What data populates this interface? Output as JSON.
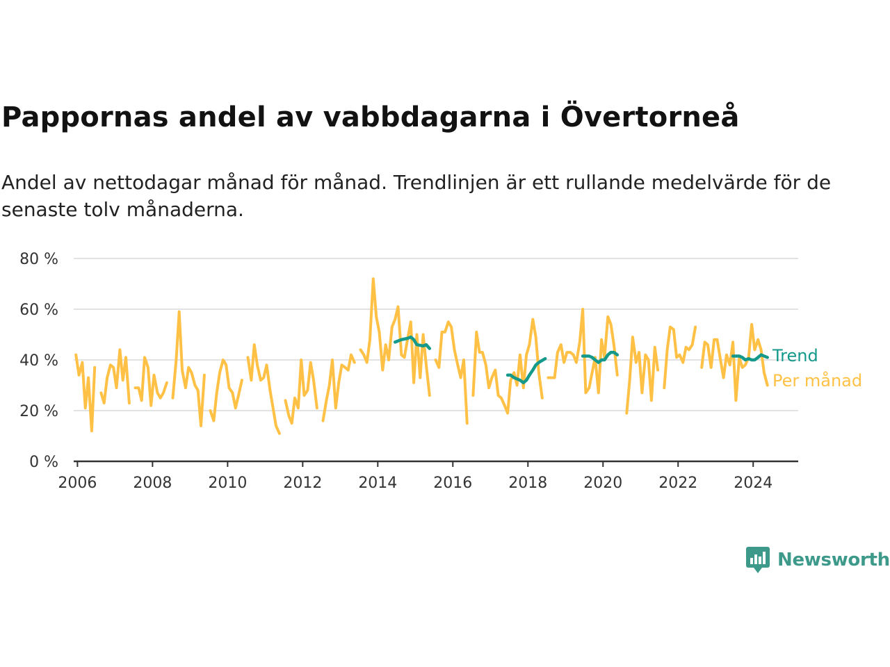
{
  "title": "Pappornas andel av vabbdagarna i Övertorneå",
  "subtitle": "Andel av nettodagar månad för månad. Trendlinjen är ett rullande medelvärde för de senaste tolv månaderna.",
  "brand": {
    "name": "Newsworthy",
    "color": "#3d9a8b",
    "icon": "newsworthy-logo-icon"
  },
  "chart_data": {
    "type": "line",
    "ylim": [
      0,
      80
    ],
    "xlim": [
      2005.9,
      2025.2
    ],
    "yticks": [
      0,
      20,
      40,
      60,
      80
    ],
    "ytick_labels": [
      "0 %",
      "20 %",
      "40 %",
      "60 %",
      "80 %"
    ],
    "xticks": [
      2006,
      2008,
      2010,
      2012,
      2014,
      2016,
      2018,
      2020,
      2022,
      2024
    ],
    "xtick_labels": [
      "2006",
      "2008",
      "2010",
      "2012",
      "2014",
      "2016",
      "2018",
      "2020",
      "2022",
      "2024"
    ],
    "grid": true,
    "series": [
      {
        "name": "Per månad",
        "color": "#ffc145",
        "points": [
          [
            2005.96,
            42
          ],
          [
            2006.04,
            34
          ],
          [
            2006.13,
            39
          ],
          [
            2006.21,
            21
          ],
          [
            2006.29,
            33
          ],
          [
            2006.38,
            12
          ],
          [
            2006.46,
            37
          ],
          null,
          [
            2006.63,
            27
          ],
          [
            2006.71,
            23
          ],
          [
            2006.79,
            33
          ],
          [
            2006.88,
            38
          ],
          [
            2006.96,
            37
          ],
          [
            2007.04,
            29
          ],
          [
            2007.13,
            44
          ],
          [
            2007.21,
            32
          ],
          [
            2007.29,
            41
          ],
          [
            2007.38,
            23
          ],
          null,
          [
            2007.54,
            29
          ],
          [
            2007.63,
            29
          ],
          [
            2007.71,
            24
          ],
          [
            2007.79,
            41
          ],
          [
            2007.88,
            37
          ],
          [
            2007.96,
            22
          ],
          [
            2008.04,
            34
          ],
          [
            2008.13,
            27
          ],
          [
            2008.21,
            25
          ],
          [
            2008.29,
            27
          ],
          [
            2008.38,
            31
          ],
          null,
          [
            2008.54,
            25
          ],
          [
            2008.63,
            40
          ],
          [
            2008.71,
            59
          ],
          [
            2008.79,
            36
          ],
          [
            2008.88,
            29
          ],
          [
            2008.96,
            37
          ],
          [
            2009.04,
            35
          ],
          [
            2009.13,
            30
          ],
          [
            2009.21,
            28
          ],
          [
            2009.29,
            14
          ],
          [
            2009.38,
            34
          ],
          null,
          [
            2009.54,
            20
          ],
          [
            2009.63,
            16
          ],
          [
            2009.71,
            27
          ],
          [
            2009.79,
            35
          ],
          [
            2009.88,
            40
          ],
          [
            2009.96,
            38
          ],
          [
            2010.04,
            29
          ],
          [
            2010.13,
            27
          ],
          [
            2010.21,
            21
          ],
          [
            2010.29,
            26
          ],
          [
            2010.38,
            32
          ],
          null,
          [
            2010.54,
            41
          ],
          [
            2010.63,
            32
          ],
          [
            2010.71,
            46
          ],
          [
            2010.79,
            38
          ],
          [
            2010.88,
            32
          ],
          [
            2010.96,
            33
          ],
          [
            2011.04,
            38
          ],
          [
            2011.13,
            28
          ],
          [
            2011.21,
            21
          ],
          [
            2011.29,
            14
          ],
          [
            2011.38,
            11
          ],
          null,
          [
            2011.54,
            24
          ],
          [
            2011.63,
            18
          ],
          [
            2011.71,
            15
          ],
          [
            2011.79,
            25
          ],
          [
            2011.88,
            21
          ],
          [
            2011.96,
            40
          ],
          [
            2012.04,
            26
          ],
          [
            2012.13,
            28
          ],
          [
            2012.21,
            39
          ],
          [
            2012.29,
            32
          ],
          [
            2012.38,
            21
          ],
          null,
          [
            2012.54,
            16
          ],
          [
            2012.63,
            24
          ],
          [
            2012.71,
            30
          ],
          [
            2012.79,
            40
          ],
          [
            2012.88,
            21
          ],
          [
            2012.96,
            31
          ],
          [
            2013.04,
            38
          ],
          [
            2013.13,
            37
          ],
          [
            2013.21,
            36
          ],
          [
            2013.29,
            42
          ],
          [
            2013.38,
            39
          ],
          null,
          [
            2013.54,
            44
          ],
          [
            2013.63,
            42
          ],
          [
            2013.71,
            39
          ],
          [
            2013.79,
            48
          ],
          [
            2013.88,
            72
          ],
          [
            2013.96,
            57
          ],
          [
            2014.04,
            51
          ],
          [
            2014.13,
            36
          ],
          [
            2014.21,
            46
          ],
          [
            2014.29,
            40
          ],
          [
            2014.38,
            53
          ],
          [
            2014.46,
            56
          ],
          [
            2014.54,
            61
          ],
          [
            2014.63,
            42
          ],
          [
            2014.71,
            41
          ],
          [
            2014.79,
            48
          ],
          [
            2014.88,
            55
          ],
          [
            2014.96,
            31
          ],
          [
            2015.04,
            50
          ],
          [
            2015.13,
            33
          ],
          [
            2015.21,
            50
          ],
          [
            2015.29,
            38
          ],
          [
            2015.38,
            26
          ],
          null,
          [
            2015.54,
            40
          ],
          [
            2015.63,
            37
          ],
          [
            2015.71,
            51
          ],
          [
            2015.79,
            51
          ],
          [
            2015.88,
            55
          ],
          [
            2015.96,
            53
          ],
          [
            2016.04,
            44
          ],
          [
            2016.13,
            38
          ],
          [
            2016.21,
            33
          ],
          [
            2016.29,
            40
          ],
          [
            2016.38,
            15
          ],
          null,
          [
            2016.54,
            26
          ],
          [
            2016.63,
            51
          ],
          [
            2016.71,
            43
          ],
          [
            2016.79,
            43
          ],
          [
            2016.88,
            38
          ],
          [
            2016.96,
            29
          ],
          [
            2017.04,
            33
          ],
          [
            2017.13,
            36
          ],
          [
            2017.21,
            26
          ],
          [
            2017.29,
            25
          ],
          [
            2017.38,
            22
          ],
          [
            2017.46,
            19
          ],
          [
            2017.54,
            32
          ],
          [
            2017.63,
            35
          ],
          [
            2017.71,
            30
          ],
          [
            2017.79,
            42
          ],
          [
            2017.88,
            29
          ],
          [
            2017.96,
            42
          ],
          [
            2018.04,
            46
          ],
          [
            2018.13,
            56
          ],
          [
            2018.21,
            49
          ],
          [
            2018.29,
            35
          ],
          [
            2018.38,
            25
          ],
          null,
          [
            2018.54,
            33
          ],
          [
            2018.63,
            33
          ],
          [
            2018.71,
            33
          ],
          [
            2018.79,
            43
          ],
          [
            2018.88,
            46
          ],
          [
            2018.96,
            39
          ],
          [
            2019.04,
            43
          ],
          [
            2019.13,
            43
          ],
          [
            2019.21,
            42
          ],
          [
            2019.29,
            39
          ],
          [
            2019.38,
            47
          ],
          [
            2019.46,
            60
          ],
          [
            2019.54,
            27
          ],
          [
            2019.63,
            29
          ],
          [
            2019.71,
            35
          ],
          [
            2019.79,
            41
          ],
          [
            2019.88,
            27
          ],
          [
            2019.96,
            48
          ],
          [
            2020.04,
            41
          ],
          [
            2020.13,
            57
          ],
          [
            2020.21,
            54
          ],
          [
            2020.29,
            46
          ],
          [
            2020.38,
            34
          ],
          null,
          [
            2020.63,
            19
          ],
          [
            2020.71,
            32
          ],
          [
            2020.79,
            49
          ],
          [
            2020.88,
            39
          ],
          [
            2020.96,
            43
          ],
          [
            2021.04,
            27
          ],
          [
            2021.13,
            42
          ],
          [
            2021.21,
            40
          ],
          [
            2021.29,
            24
          ],
          [
            2021.38,
            45
          ],
          [
            2021.46,
            36
          ],
          null,
          [
            2021.63,
            29
          ],
          [
            2021.71,
            44
          ],
          [
            2021.79,
            53
          ],
          [
            2021.88,
            52
          ],
          [
            2021.96,
            41
          ],
          [
            2022.04,
            42
          ],
          [
            2022.13,
            39
          ],
          [
            2022.21,
            45
          ],
          [
            2022.29,
            44
          ],
          [
            2022.38,
            46
          ],
          [
            2022.46,
            53
          ],
          null,
          [
            2022.63,
            37
          ],
          [
            2022.71,
            47
          ],
          [
            2022.79,
            46
          ],
          [
            2022.88,
            37
          ],
          [
            2022.96,
            48
          ],
          [
            2023.04,
            48
          ],
          [
            2023.13,
            40
          ],
          [
            2023.21,
            33
          ],
          [
            2023.29,
            42
          ],
          [
            2023.38,
            38
          ],
          [
            2023.46,
            47
          ],
          [
            2023.54,
            24
          ],
          [
            2023.63,
            41
          ],
          [
            2023.71,
            37
          ],
          [
            2023.79,
            38
          ],
          [
            2023.88,
            41
          ],
          [
            2023.96,
            54
          ],
          [
            2024.04,
            44
          ],
          [
            2024.13,
            48
          ],
          [
            2024.21,
            44
          ],
          [
            2024.29,
            35
          ],
          [
            2024.38,
            30
          ]
        ]
      },
      {
        "name": "Trend",
        "color": "#14998b",
        "points": [
          [
            2014.46,
            47
          ],
          [
            2014.63,
            48
          ],
          [
            2014.79,
            48.5
          ],
          [
            2014.88,
            49
          ],
          [
            2014.96,
            48
          ],
          [
            2015.04,
            46
          ],
          [
            2015.21,
            45.5
          ],
          [
            2015.29,
            46
          ],
          [
            2015.38,
            44.5
          ],
          null,
          [
            2017.46,
            34
          ],
          [
            2017.54,
            34
          ],
          [
            2017.63,
            33
          ],
          [
            2017.79,
            32
          ],
          [
            2017.88,
            31
          ],
          [
            2017.96,
            32
          ],
          [
            2018.04,
            34
          ],
          [
            2018.13,
            36
          ],
          [
            2018.21,
            38
          ],
          [
            2018.29,
            39
          ],
          [
            2018.46,
            40.5
          ],
          null,
          [
            2019.46,
            41.5
          ],
          [
            2019.63,
            41.5
          ],
          [
            2019.71,
            41
          ],
          [
            2019.79,
            40
          ],
          [
            2019.88,
            39
          ],
          [
            2019.96,
            40
          ],
          [
            2020.04,
            40
          ],
          [
            2020.13,
            42
          ],
          [
            2020.21,
            43
          ],
          [
            2020.29,
            43
          ],
          [
            2020.38,
            42
          ],
          null,
          [
            2023.46,
            41.5
          ],
          [
            2023.63,
            41.5
          ],
          [
            2023.71,
            41
          ],
          [
            2023.79,
            40
          ],
          [
            2023.88,
            40.5
          ],
          [
            2023.96,
            40
          ],
          [
            2024.04,
            40
          ],
          [
            2024.13,
            41
          ],
          [
            2024.21,
            42
          ],
          [
            2024.38,
            41
          ]
        ]
      }
    ]
  }
}
